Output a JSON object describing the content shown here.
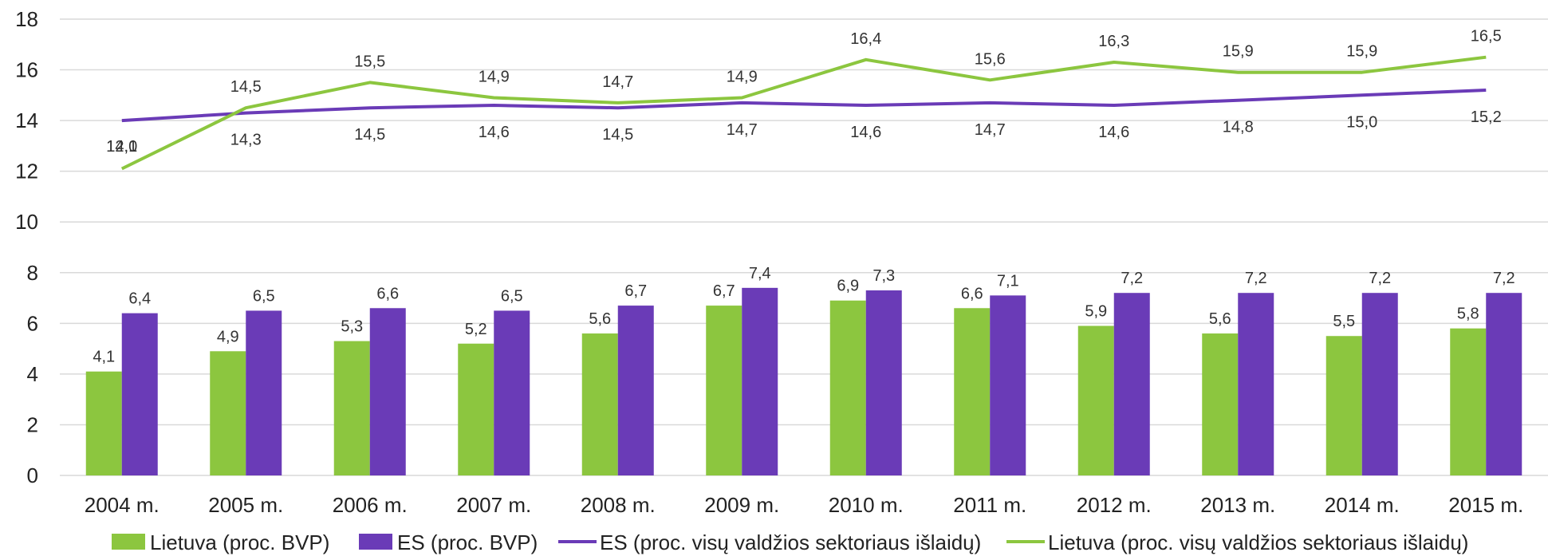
{
  "colors": {
    "lietuva": "#8cc63f",
    "es": "#6a3bb7",
    "grid": "#d9d9d9"
  },
  "chart_data": {
    "type": "bar",
    "categories": [
      "2004 m.",
      "2005 m.",
      "2006 m.",
      "2007 m.",
      "2008 m.",
      "2009 m.",
      "2010 m.",
      "2011 m.",
      "2012 m.",
      "2013 m.",
      "2014 m.",
      "2015 m."
    ],
    "ylim": [
      0,
      18
    ],
    "yticks": [
      "0",
      "2",
      "4",
      "6",
      "8",
      "10",
      "12",
      "14",
      "16",
      "18"
    ],
    "grid": true,
    "legend_position": "bottom",
    "series": [
      {
        "name": "Lietuva (proc. BVP)",
        "kind": "bar",
        "color": "#8cc63f",
        "values": [
          4.1,
          4.9,
          5.3,
          5.2,
          5.6,
          6.7,
          6.9,
          6.6,
          5.9,
          5.6,
          5.5,
          5.8
        ],
        "labels": [
          "4,1",
          "4,9",
          "5,3",
          "5,2",
          "5,6",
          "6,7",
          "6,9",
          "6,6",
          "5,9",
          "5,6",
          "5,5",
          "5,8"
        ]
      },
      {
        "name": "ES (proc. BVP)",
        "kind": "bar",
        "color": "#6a3bb7",
        "values": [
          6.4,
          6.5,
          6.6,
          6.5,
          6.7,
          7.4,
          7.3,
          7.1,
          7.2,
          7.2,
          7.2,
          7.2
        ],
        "labels": [
          "6,4",
          "6,5",
          "6,6",
          "6,5",
          "6,7",
          "7,4",
          "7,3",
          "7,1",
          "7,2",
          "7,2",
          "7,2",
          "7,2"
        ]
      },
      {
        "name": "ES (proc. visų valdžios sektoriaus išlaidų)",
        "kind": "line",
        "color": "#6a3bb7",
        "values": [
          14.0,
          14.3,
          14.5,
          14.6,
          14.5,
          14.7,
          14.6,
          14.7,
          14.6,
          14.8,
          15.0,
          15.2
        ],
        "labels": [
          "14,0",
          "14,3",
          "14,5",
          "14,6",
          "14,5",
          "14,7",
          "14,6",
          "14,7",
          "14,6",
          "14,8",
          "15,0",
          "15,2"
        ]
      },
      {
        "name": "Lietuva (proc. visų valdžios sektoriaus išlaidų)",
        "kind": "line",
        "color": "#8cc63f",
        "values": [
          12.1,
          14.5,
          15.5,
          14.9,
          14.7,
          14.9,
          16.4,
          15.6,
          16.3,
          15.9,
          15.9,
          16.5
        ],
        "labels": [
          "12,1",
          "14,5",
          "15,5",
          "14,9",
          "14,7",
          "14,9",
          "16,4",
          "15,6",
          "16,3",
          "15,9",
          "15,9",
          "16,5"
        ]
      }
    ]
  }
}
